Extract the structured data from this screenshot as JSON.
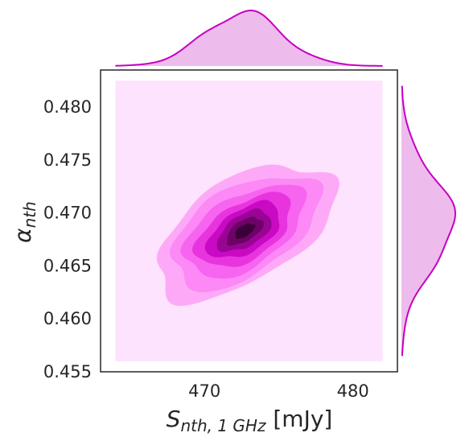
{
  "chart_data": {
    "type": "kde-joint",
    "xlabel": {
      "main": "S",
      "sub": "nth, 1 GHz",
      "unit": " [mJy]"
    },
    "ylabel": {
      "main": "α",
      "sub": "nth"
    },
    "xlim": [
      463,
      483
    ],
    "ylim": [
      0.455,
      0.4835
    ],
    "x_ticks": [
      470,
      480
    ],
    "y_ticks": [
      0.455,
      0.46,
      0.465,
      0.47,
      0.475,
      0.48
    ],
    "y_tick_labels": [
      "0.455",
      "0.460",
      "0.465",
      "0.470",
      "0.475",
      "0.480"
    ],
    "grid": false,
    "kde_region": {
      "x": [
        464,
        482
      ],
      "y": [
        0.456,
        0.4825
      ]
    },
    "peak": {
      "x": 472.7,
      "y": 0.4683
    },
    "contour_levels": [
      {
        "rx": 7.3,
        "ry": 0.0055,
        "color": "#fda9f8"
      },
      {
        "rx": 6.0,
        "ry": 0.0047,
        "color": "#fc89f6"
      },
      {
        "rx": 4.9,
        "ry": 0.0038,
        "color": "#f764ef"
      },
      {
        "rx": 3.9,
        "ry": 0.003,
        "color": "#e834de"
      },
      {
        "rx": 3.0,
        "ry": 0.0023,
        "color": "#c909c3"
      },
      {
        "rx": 2.2,
        "ry": 0.0017,
        "color": "#990494"
      },
      {
        "rx": 1.5,
        "ry": 0.0011,
        "color": "#6d0267"
      },
      {
        "rx": 0.8,
        "ry": 0.0006,
        "color": "#3a0037"
      }
    ],
    "background_color": "#fde3fd",
    "marginal_color": "#c600c2",
    "marginal_fill": "#eebcec",
    "x_marginal": {
      "mean": 472.6,
      "sd": 2.6,
      "range": [
        464,
        482
      ]
    },
    "y_marginal": {
      "mean": 0.4692,
      "sd": 0.0043,
      "range": [
        0.4565,
        0.482
      ]
    }
  }
}
